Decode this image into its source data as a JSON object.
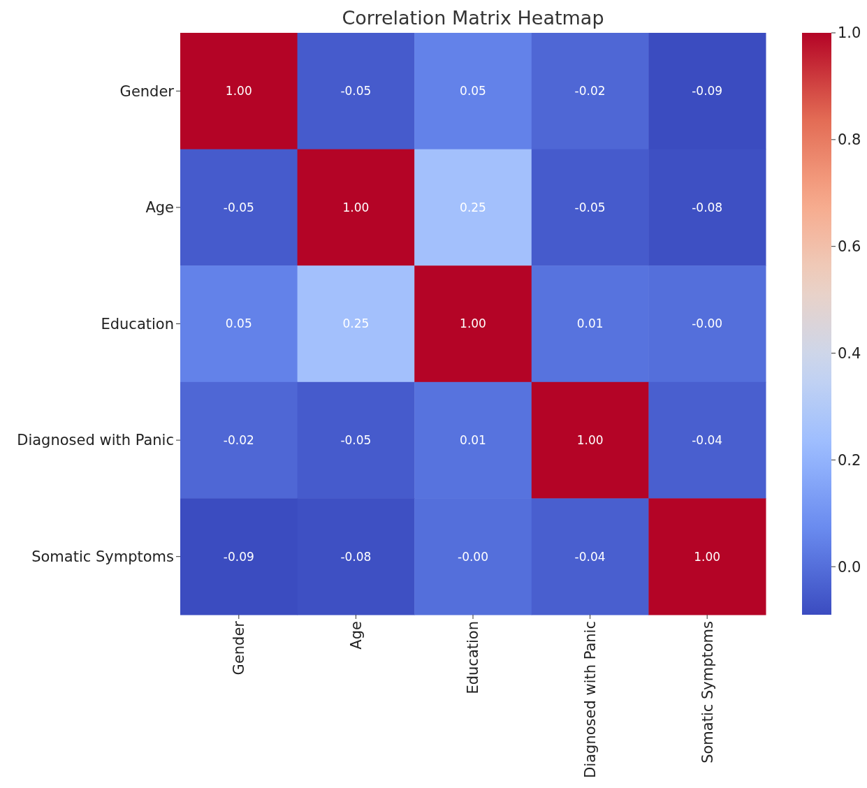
{
  "chart_data": {
    "type": "heatmap",
    "title": "Correlation Matrix Heatmap",
    "categories": [
      "Gender",
      "Age",
      "Education",
      "Diagnosed with Panic",
      "Somatic Symptoms"
    ],
    "y_categories": [
      "Gender",
      "Age",
      "Education",
      "Diagnosed with Panic",
      "Somatic Symptoms"
    ],
    "cells": [
      [
        1.0,
        -0.05,
        0.05,
        -0.02,
        -0.09
      ],
      [
        -0.05,
        1.0,
        0.25,
        -0.05,
        -0.08
      ],
      [
        0.05,
        0.25,
        1.0,
        0.01,
        0.0
      ],
      [
        -0.02,
        -0.05,
        0.01,
        1.0,
        -0.04
      ],
      [
        -0.09,
        -0.08,
        0.0,
        -0.04,
        1.0
      ]
    ],
    "cell_labels": [
      [
        "1.00",
        "-0.05",
        "0.05",
        "-0.02",
        "-0.09"
      ],
      [
        "-0.05",
        "1.00",
        "0.25",
        "-0.05",
        "-0.08"
      ],
      [
        "0.05",
        "0.25",
        "1.00",
        "0.01",
        "-0.00"
      ],
      [
        "-0.02",
        "-0.05",
        "0.01",
        "1.00",
        "-0.04"
      ],
      [
        "-0.09",
        "-0.08",
        "-0.00",
        "-0.04",
        "1.00"
      ]
    ],
    "clim": [
      -0.09,
      1.0
    ],
    "cticks": [
      {
        "value": 0,
        "label": "0.0"
      },
      {
        "value": 0.2,
        "label": "0.2"
      },
      {
        "value": 0.4,
        "label": "0.4"
      },
      {
        "value": 0.6,
        "label": "0.6"
      },
      {
        "value": 0.8,
        "label": "0.8"
      },
      {
        "value": 1,
        "label": "1.0"
      }
    ]
  }
}
